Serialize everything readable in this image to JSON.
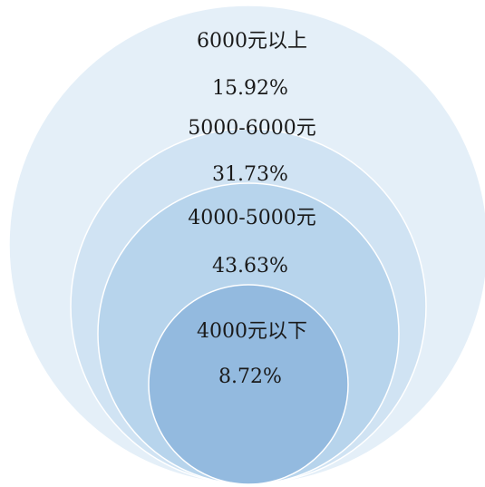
{
  "chart_data": {
    "type": "nested-circles",
    "title": "",
    "categories": [
      "6000元以上",
      "5000-6000元",
      "4000-5000元",
      "4000元以下"
    ],
    "values": [
      15.92,
      31.73,
      43.63,
      8.72
    ],
    "value_labels": [
      "15.92%",
      "31.73%",
      "43.63%",
      "8.72%"
    ],
    "unit": "%",
    "colors": [
      "#e4eff8",
      "#d0e3f3",
      "#b7d4ec",
      "#93badf"
    ]
  }
}
